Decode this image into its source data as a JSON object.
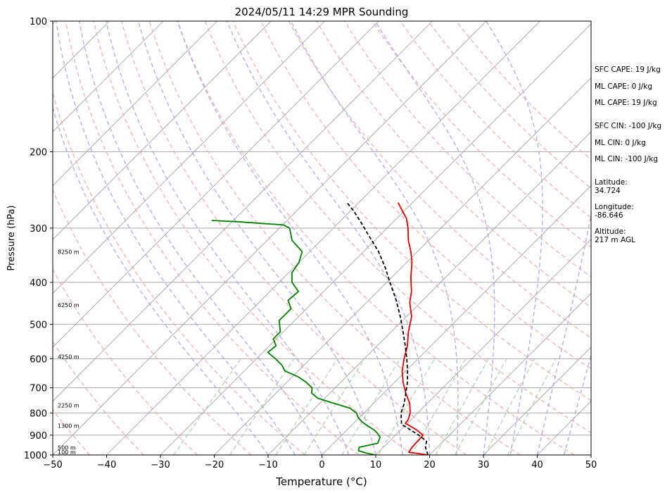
{
  "chart_data": {
    "type": "line",
    "title": "2024/05/11 14:29 MPR Sounding",
    "xlabel": "Temperature (°C)",
    "ylabel": "Pressure (hPa)",
    "xlim": [
      -50,
      50
    ],
    "ylim": [
      1000,
      100
    ],
    "y_scale": "log",
    "skew": "temperature isotherms skewed 45°",
    "x_ticks": [
      "−50",
      "−40",
      "−30",
      "−20",
      "−10",
      "0",
      "10",
      "20",
      "30",
      "40",
      "50"
    ],
    "x_tick_values": [
      -50,
      -40,
      -30,
      -20,
      -10,
      0,
      10,
      20,
      30,
      40,
      50
    ],
    "y_ticks": [
      "100",
      "200",
      "300",
      "400",
      "500",
      "600",
      "700",
      "800",
      "900",
      "1000"
    ],
    "y_tick_values": [
      100,
      200,
      300,
      400,
      500,
      600,
      700,
      800,
      900,
      1000
    ],
    "grid": true,
    "series": [
      {
        "key": "temperature",
        "color": "#e00000",
        "style": "solid",
        "points": [
          [
            1000,
            19.7
          ],
          [
            985,
            15.6
          ],
          [
            960,
            15.3
          ],
          [
            900,
            15.1
          ],
          [
            875,
            12.9
          ],
          [
            845,
            9.6
          ],
          [
            830,
            9.5
          ],
          [
            800,
            8.6
          ],
          [
            760,
            6.7
          ],
          [
            720,
            4.1
          ],
          [
            680,
            1.6
          ],
          [
            640,
            -0.7
          ],
          [
            600,
            -2.6
          ],
          [
            560,
            -4.4
          ],
          [
            520,
            -6.8
          ],
          [
            480,
            -9.0
          ],
          [
            445,
            -12.0
          ],
          [
            420,
            -13.7
          ],
          [
            390,
            -16.4
          ],
          [
            360,
            -19.0
          ],
          [
            340,
            -21.2
          ],
          [
            320,
            -23.8
          ],
          [
            300,
            -26.1
          ],
          [
            285,
            -28.2
          ],
          [
            270,
            -31.1
          ],
          [
            262,
            -32.7
          ]
        ]
      },
      {
        "key": "dewpoint",
        "color": "#008000",
        "style": "solid",
        "points": [
          [
            1000,
            9.9
          ],
          [
            990,
            7.9
          ],
          [
            978,
            6.0
          ],
          [
            960,
            5.5
          ],
          [
            940,
            8.2
          ],
          [
            910,
            7.5
          ],
          [
            890,
            6.2
          ],
          [
            875,
            5.0
          ],
          [
            860,
            3.4
          ],
          [
            840,
            1.4
          ],
          [
            820,
            -0.2
          ],
          [
            800,
            -1.4
          ],
          [
            780,
            -3.5
          ],
          [
            760,
            -7.4
          ],
          [
            740,
            -11.3
          ],
          [
            720,
            -13.4
          ],
          [
            700,
            -14.3
          ],
          [
            680,
            -16.4
          ],
          [
            660,
            -19.0
          ],
          [
            640,
            -22.5
          ],
          [
            620,
            -24.2
          ],
          [
            600,
            -26.5
          ],
          [
            580,
            -29.1
          ],
          [
            560,
            -28.8
          ],
          [
            540,
            -30.6
          ],
          [
            520,
            -30.6
          ],
          [
            490,
            -32.9
          ],
          [
            460,
            -32.9
          ],
          [
            440,
            -35.0
          ],
          [
            420,
            -34.7
          ],
          [
            400,
            -37.6
          ],
          [
            380,
            -39.4
          ],
          [
            360,
            -40.0
          ],
          [
            340,
            -41.4
          ],
          [
            320,
            -45.4
          ],
          [
            300,
            -48.1
          ],
          [
            295,
            -49.8
          ],
          [
            290,
            -59.0
          ],
          [
            288,
            -64.0
          ]
        ]
      },
      {
        "key": "parcel",
        "color": "#000000",
        "style": "dashed",
        "points": [
          [
            1000,
            19.7
          ],
          [
            960,
            17.8
          ],
          [
            930,
            16.9
          ],
          [
            900,
            14.3
          ],
          [
            850,
            9.1
          ],
          [
            800,
            6.9
          ],
          [
            760,
            5.7
          ],
          [
            720,
            4.1
          ],
          [
            680,
            2.4
          ],
          [
            640,
            0.3
          ],
          [
            600,
            -2.1
          ],
          [
            560,
            -4.8
          ],
          [
            520,
            -7.8
          ],
          [
            480,
            -11.1
          ],
          [
            440,
            -14.9
          ],
          [
            400,
            -19.4
          ],
          [
            370,
            -23.0
          ],
          [
            340,
            -27.2
          ],
          [
            310,
            -32.4
          ],
          [
            290,
            -36.1
          ],
          [
            272,
            -39.8
          ],
          [
            262,
            -42.2
          ]
        ]
      }
    ],
    "height_labels": [
      {
        "p": 1000,
        "text": "100 m"
      },
      {
        "p": 976,
        "text": "500 m"
      },
      {
        "p": 870,
        "text": "1300 m"
      },
      {
        "p": 780,
        "text": "2250 m"
      },
      {
        "p": 603,
        "text": "4250 m"
      },
      {
        "p": 458,
        "text": "6250 m"
      },
      {
        "p": 345,
        "text": "8250 m"
      }
    ]
  },
  "sidebar": {
    "sfc_cape": "SFC CAPE: 19 J/kg",
    "ml_cape_a": "ML CAPE: 0 J/kg",
    "ml_cape_b": "ML CAPE: 19 J/kg",
    "sfc_cin": "SFC CIN: -100 J/kg",
    "ml_cin_a": "ML CIN: 0 J/kg",
    "ml_cin_b": "ML CIN: -100 J/kg",
    "latitude": "Latitude:\n34.724",
    "longitude": "Longitude:\n-86.646",
    "altitude": "Altitude:\n217 m AGL"
  },
  "colors": {
    "dry_adiabat": "#f4a3a3",
    "moist_adiabat": "#a8a0f0",
    "mixing_ratio": "#9fcf9f",
    "isotherm": "#a0a0a0",
    "isobar": "#a8a8a8"
  }
}
